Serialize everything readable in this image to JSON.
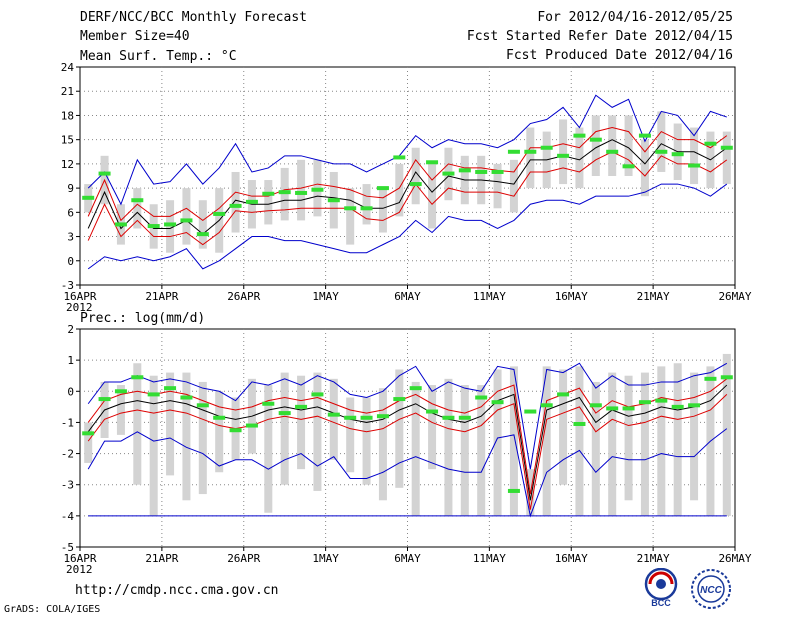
{
  "header": {
    "title": "DERF/NCC/BCC Monthly Forecast",
    "member_size": "Member Size=40",
    "period": "For 2012/04/16-2012/05/25",
    "started": "Fcst Started Refer Date 2012/04/15",
    "produced": "Fcst Produced Date 2012/04/16"
  },
  "footer": {
    "url": "http://cmdp.ncc.cma.gov.cn",
    "credit": "GrADS: COLA/IGES"
  },
  "logos": {
    "bcc": "BCC",
    "ncc": "NCC"
  },
  "colors": {
    "mean": "#000000",
    "stdband": "#dd0000",
    "extremes": "#0000cc",
    "box": "#d3d3d3",
    "obs": "#33dd33"
  },
  "chart_data": [
    {
      "type": "line",
      "title": "Mean Surf. Temp.: °C",
      "ylim": [
        -3,
        24
      ],
      "yticks": [
        -3,
        0,
        3,
        6,
        9,
        12,
        15,
        18,
        21,
        24
      ],
      "xtick_labels": [
        "16APR",
        "21APR",
        "26APR",
        "1MAY",
        "6MAY",
        "11MAY",
        "16MAY",
        "21MAY",
        "26MAY"
      ],
      "year_label": "2012",
      "days": 40,
      "series": [
        {
          "name": "mean",
          "values": [
            4.0,
            8.5,
            4.0,
            6.0,
            4.0,
            4.0,
            5.0,
            3.3,
            5.0,
            7.5,
            7.0,
            7.0,
            7.5,
            7.5,
            8.0,
            7.8,
            7.5,
            6.5,
            6.5,
            7.2,
            11.0,
            8.5,
            10.5,
            10.0,
            10.0,
            9.8,
            9.5,
            12.5,
            12.5,
            13.0,
            12.5,
            14.0,
            15.0,
            14.0,
            12.0,
            14.5,
            13.5,
            13.5,
            12.5,
            14.0
          ]
        },
        {
          "name": "mean_plus_std",
          "values": [
            5.5,
            10.0,
            5.0,
            7.0,
            5.5,
            5.5,
            6.5,
            5.0,
            6.5,
            8.5,
            8.0,
            8.0,
            8.8,
            9.0,
            9.5,
            9.2,
            8.8,
            8.0,
            7.8,
            9.0,
            12.5,
            10.0,
            12.0,
            11.5,
            11.5,
            11.2,
            11.0,
            14.0,
            14.0,
            14.5,
            14.0,
            16.0,
            16.5,
            16.0,
            13.5,
            16.0,
            15.0,
            15.0,
            14.0,
            15.5
          ]
        },
        {
          "name": "mean_minus_std",
          "values": [
            2.5,
            7.0,
            3.0,
            5.0,
            3.0,
            3.0,
            3.5,
            2.0,
            3.5,
            6.2,
            6.0,
            6.2,
            6.3,
            6.5,
            6.5,
            6.5,
            6.5,
            5.2,
            5.0,
            6.0,
            9.5,
            7.0,
            9.0,
            8.5,
            8.5,
            8.5,
            8.0,
            11.0,
            11.0,
            11.5,
            11.0,
            12.5,
            13.5,
            12.5,
            10.5,
            13.0,
            12.0,
            12.0,
            11.0,
            12.5
          ]
        },
        {
          "name": "maximum",
          "values": [
            9.0,
            11.0,
            7.0,
            12.5,
            9.5,
            9.8,
            12.0,
            9.5,
            11.5,
            14.5,
            11.0,
            11.5,
            13.0,
            13.0,
            12.5,
            12.0,
            12.0,
            11.0,
            12.0,
            13.0,
            15.5,
            14.0,
            15.0,
            14.5,
            14.5,
            14.0,
            15.0,
            17.0,
            17.5,
            19.0,
            16.5,
            20.5,
            19.0,
            20.0,
            14.8,
            18.5,
            18.0,
            15.5,
            18.5,
            17.8
          ]
        },
        {
          "name": "minimum",
          "values": [
            -1.0,
            0.5,
            0.0,
            0.5,
            0.0,
            0.5,
            1.5,
            -1.0,
            0.0,
            1.5,
            3.0,
            3.0,
            2.5,
            2.5,
            2.0,
            1.5,
            1.0,
            1.0,
            2.0,
            3.0,
            5.0,
            3.5,
            5.5,
            5.0,
            5.0,
            4.0,
            5.0,
            7.0,
            7.5,
            7.5,
            7.0,
            8.0,
            8.0,
            8.0,
            8.5,
            9.5,
            9.5,
            9.0,
            8.0,
            9.5
          ]
        },
        {
          "name": "observed",
          "values": [
            7.8,
            10.8,
            4.5,
            7.5,
            4.3,
            4.5,
            5.0,
            3.3,
            5.8,
            6.8,
            7.3,
            8.3,
            8.5,
            8.4,
            8.8,
            7.5,
            6.5,
            6.5,
            9.0,
            12.8,
            9.5,
            12.2,
            10.8,
            11.2,
            11.0,
            11.0,
            13.5,
            13.5,
            14.0,
            13.0,
            15.5,
            15.0,
            13.5,
            11.7,
            15.5,
            13.5,
            13.2,
            11.8,
            14.5,
            14.0
          ]
        }
      ],
      "box_low": [
        6.0,
        7.0,
        2.0,
        4.0,
        1.5,
        1.0,
        2.0,
        1.5,
        1.0,
        3.5,
        4.0,
        4.5,
        5.0,
        5.0,
        5.5,
        4.0,
        2.0,
        4.5,
        3.5,
        5.5,
        7.0,
        4.0,
        7.5,
        7.0,
        7.0,
        6.5,
        6.0,
        9.0,
        9.0,
        9.5,
        9.0,
        10.5,
        10.5,
        10.5,
        8.0,
        11.0,
        10.0,
        9.5,
        9.0,
        9.5
      ],
      "box_high": [
        9.5,
        13.0,
        7.0,
        9.0,
        7.0,
        7.5,
        9.0,
        7.5,
        9.0,
        11.0,
        10.0,
        10.0,
        11.5,
        12.5,
        12.5,
        11.0,
        9.0,
        9.5,
        9.0,
        12.0,
        14.0,
        12.0,
        14.0,
        13.0,
        13.0,
        12.0,
        12.5,
        16.5,
        16.0,
        17.5,
        16.5,
        18.0,
        18.0,
        18.0,
        15.0,
        18.5,
        17.0,
        16.5,
        16.0,
        16.0
      ]
    },
    {
      "type": "line",
      "title": "Prec.: log(mm/d)",
      "ylim": [
        -5,
        2
      ],
      "yticks": [
        -5,
        -4,
        -3,
        -2,
        -1,
        0,
        1,
        2
      ],
      "xtick_labels": [
        "16APR",
        "21APR",
        "26APR",
        "1MAY",
        "6MAY",
        "11MAY",
        "16MAY",
        "21MAY",
        "26MAY"
      ],
      "year_label": "2012",
      "days": 40,
      "series": [
        {
          "name": "mean",
          "values": [
            -1.3,
            -0.6,
            -0.4,
            -0.3,
            -0.4,
            -0.3,
            -0.4,
            -0.6,
            -0.8,
            -0.9,
            -0.8,
            -0.6,
            -0.5,
            -0.6,
            -0.5,
            -0.7,
            -0.9,
            -1.0,
            -0.9,
            -0.6,
            -0.4,
            -0.7,
            -0.9,
            -1.0,
            -0.8,
            -0.3,
            -0.1,
            -3.5,
            -0.6,
            -0.4,
            -0.2,
            -1.0,
            -0.6,
            -0.8,
            -0.7,
            -0.5,
            -0.6,
            -0.5,
            -0.3,
            0.2
          ]
        },
        {
          "name": "mean_plus_std",
          "values": [
            -1.0,
            -0.3,
            -0.1,
            0.0,
            -0.1,
            0.0,
            -0.1,
            -0.3,
            -0.5,
            -0.6,
            -0.5,
            -0.3,
            -0.2,
            -0.3,
            -0.2,
            -0.4,
            -0.6,
            -0.7,
            -0.6,
            -0.3,
            -0.1,
            -0.4,
            -0.6,
            -0.7,
            -0.5,
            0.0,
            0.2,
            -3.3,
            -0.3,
            -0.1,
            0.1,
            -0.7,
            -0.3,
            -0.5,
            -0.4,
            -0.2,
            -0.3,
            -0.2,
            0.0,
            0.4
          ]
        },
        {
          "name": "mean_minus_std",
          "values": [
            -1.6,
            -0.9,
            -0.7,
            -0.6,
            -0.7,
            -0.6,
            -0.7,
            -0.9,
            -1.1,
            -1.2,
            -1.1,
            -0.9,
            -0.8,
            -0.9,
            -0.8,
            -1.0,
            -1.2,
            -1.3,
            -1.2,
            -0.9,
            -0.7,
            -1.0,
            -1.2,
            -1.3,
            -1.1,
            -0.6,
            -0.4,
            -3.8,
            -0.9,
            -0.7,
            -0.5,
            -1.3,
            -0.9,
            -1.1,
            -1.0,
            -0.8,
            -0.9,
            -0.8,
            -0.6,
            -0.1
          ]
        },
        {
          "name": "maximum",
          "values": [
            -0.4,
            0.3,
            0.3,
            0.5,
            0.3,
            0.4,
            0.3,
            0.1,
            0.0,
            -0.3,
            0.3,
            0.2,
            0.4,
            0.2,
            0.5,
            0.3,
            -0.1,
            -0.2,
            0.0,
            0.5,
            0.8,
            0.0,
            0.3,
            0.1,
            0.0,
            0.8,
            0.7,
            -2.5,
            0.7,
            0.6,
            0.9,
            0.1,
            0.5,
            0.2,
            0.2,
            0.3,
            0.3,
            0.5,
            0.6,
            0.9
          ]
        },
        {
          "name": "minimum",
          "values": [
            -2.5,
            -1.6,
            -1.6,
            -1.3,
            -1.6,
            -1.5,
            -1.8,
            -2.0,
            -2.4,
            -2.2,
            -2.2,
            -2.5,
            -2.2,
            -2.0,
            -2.4,
            -2.1,
            -2.8,
            -2.8,
            -2.6,
            -2.3,
            -2.1,
            -2.3,
            -2.5,
            -2.6,
            -2.6,
            -1.5,
            -1.4,
            -4.0,
            -2.6,
            -2.2,
            -1.9,
            -2.6,
            -2.1,
            -2.2,
            -2.2,
            -2.0,
            -2.1,
            -2.1,
            -1.6,
            -1.2
          ]
        },
        {
          "name": "observed",
          "values": [
            -1.35,
            -0.25,
            0.0,
            0.45,
            -0.1,
            0.1,
            -0.2,
            -0.45,
            -0.85,
            -1.25,
            -1.1,
            -0.4,
            -0.7,
            -0.5,
            -0.1,
            -0.75,
            -0.85,
            -0.85,
            -0.8,
            -0.25,
            0.1,
            -0.65,
            -0.85,
            -0.85,
            -0.2,
            -0.35,
            -3.2,
            -0.65,
            -0.45,
            -0.1,
            -1.05,
            -0.45,
            -0.55,
            -0.55,
            -0.35,
            -0.3,
            -0.5,
            -0.45,
            0.4,
            0.45
          ]
        }
      ],
      "box_low": [
        -2.3,
        -1.5,
        -1.4,
        -3.0,
        -4.0,
        -2.7,
        -3.5,
        -3.3,
        -2.6,
        -2.2,
        -2.0,
        -3.9,
        -3.0,
        -2.5,
        -3.2,
        -2.2,
        -2.6,
        -3.0,
        -3.5,
        -3.1,
        -4.0,
        -2.5,
        -4.0,
        -4.0,
        -4.0,
        -4.0,
        -4.0,
        -4.0,
        -4.0,
        -3.0,
        -4.0,
        -4.0,
        -4.0,
        -3.5,
        -4.0,
        -4.0,
        -4.0,
        -3.5,
        -4.0,
        -4.0
      ],
      "box_high": [
        -1.0,
        0.3,
        0.2,
        0.9,
        0.5,
        0.6,
        0.6,
        0.3,
        0.0,
        -0.2,
        0.4,
        0.2,
        0.6,
        0.5,
        0.6,
        0.4,
        -0.2,
        -0.2,
        0.1,
        0.7,
        0.3,
        0.2,
        0.4,
        0.2,
        0.2,
        0.7,
        0.8,
        -2.5,
        0.8,
        0.7,
        0.8,
        0.3,
        0.6,
        0.5,
        0.6,
        0.8,
        0.9,
        0.6,
        0.8,
        1.2
      ]
    }
  ]
}
